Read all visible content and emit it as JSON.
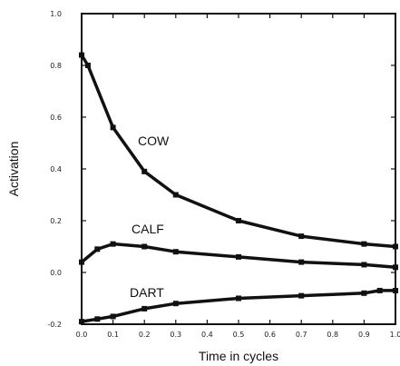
{
  "chart_data": {
    "type": "line",
    "title": "",
    "xlabel": "Time in cycles",
    "ylabel": "Activation",
    "xlim": [
      0,
      1.0
    ],
    "ylim": [
      -0.2,
      1.0
    ],
    "grid": false,
    "x_ticks": [
      0.0,
      0.1,
      0.2,
      0.3,
      0.4,
      0.5,
      0.6,
      0.7,
      0.8,
      0.9,
      1.0
    ],
    "x_tick_labels": [
      "0.0",
      "0.1",
      "0.2",
      "0.3",
      "0.4",
      "0.5",
      "0.6",
      "0.7",
      "0.8",
      "0.9",
      "1.0"
    ],
    "y_ticks": [
      -0.2,
      0.0,
      0.2,
      0.4,
      0.6,
      0.8,
      1.0
    ],
    "y_tick_labels": [
      "-0.2",
      "0.0",
      "0.2",
      "0.4",
      "0.6",
      "0.8",
      "1.0"
    ],
    "series": [
      {
        "name": "COW",
        "x": [
          0.0,
          0.02,
          0.1,
          0.2,
          0.3,
          0.5,
          0.7,
          0.9,
          1.0
        ],
        "y": [
          0.84,
          0.8,
          0.56,
          0.39,
          0.3,
          0.2,
          0.14,
          0.11,
          0.1
        ]
      },
      {
        "name": "CALF",
        "x": [
          0.0,
          0.05,
          0.1,
          0.2,
          0.3,
          0.5,
          0.7,
          0.9,
          1.0
        ],
        "y": [
          0.04,
          0.09,
          0.11,
          0.1,
          0.08,
          0.06,
          0.04,
          0.03,
          0.02
        ]
      },
      {
        "name": "DART",
        "x": [
          0.0,
          0.05,
          0.1,
          0.2,
          0.3,
          0.5,
          0.7,
          0.9,
          0.95,
          1.0
        ],
        "y": [
          -0.19,
          -0.18,
          -0.17,
          -0.14,
          -0.12,
          -0.1,
          -0.09,
          -0.08,
          -0.07,
          -0.07
        ]
      }
    ]
  }
}
